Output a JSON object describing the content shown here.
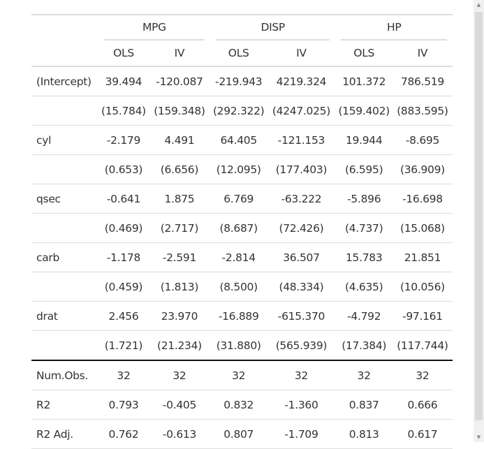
{
  "groups": [
    "MPG",
    "DISP",
    "HP"
  ],
  "models": [
    "OLS",
    "IV",
    "OLS",
    "IV",
    "OLS",
    "IV"
  ],
  "rows": [
    {
      "label": "(Intercept)",
      "coef": [
        "39.494",
        "-120.087",
        "-219.943",
        "4219.324",
        "101.372",
        "786.519"
      ],
      "se": [
        "(15.784)",
        "(159.348)",
        "(292.322)",
        "(4247.025)",
        "(159.402)",
        "(883.595)"
      ]
    },
    {
      "label": "cyl",
      "coef": [
        "-2.179",
        "4.491",
        "64.405",
        "-121.153",
        "19.944",
        "-8.695"
      ],
      "se": [
        "(0.653)",
        "(6.656)",
        "(12.095)",
        "(177.403)",
        "(6.595)",
        "(36.909)"
      ]
    },
    {
      "label": "qsec",
      "coef": [
        "-0.641",
        "1.875",
        "6.769",
        "-63.222",
        "-5.896",
        "-16.698"
      ],
      "se": [
        "(0.469)",
        "(2.717)",
        "(8.687)",
        "(72.426)",
        "(4.737)",
        "(15.068)"
      ]
    },
    {
      "label": "carb",
      "coef": [
        "-1.178",
        "-2.591",
        "-2.814",
        "36.507",
        "15.783",
        "21.851"
      ],
      "se": [
        "(0.459)",
        "(1.813)",
        "(8.500)",
        "(48.334)",
        "(4.635)",
        "(10.056)"
      ]
    },
    {
      "label": "drat",
      "coef": [
        "2.456",
        "23.970",
        "-16.889",
        "-615.370",
        "-4.792",
        "-97.161"
      ],
      "se": [
        "(1.721)",
        "(21.234)",
        "(31.880)",
        "(565.939)",
        "(17.384)",
        "(117.744)"
      ]
    }
  ],
  "stats": [
    {
      "label": "Num.Obs.",
      "values": [
        "32",
        "32",
        "32",
        "32",
        "32",
        "32"
      ]
    },
    {
      "label": "R2",
      "values": [
        "0.793",
        "-0.405",
        "0.832",
        "-1.360",
        "0.837",
        "0.666"
      ]
    },
    {
      "label": "R2 Adj.",
      "values": [
        "0.762",
        "-0.613",
        "0.807",
        "-1.709",
        "0.813",
        "0.617"
      ]
    }
  ]
}
